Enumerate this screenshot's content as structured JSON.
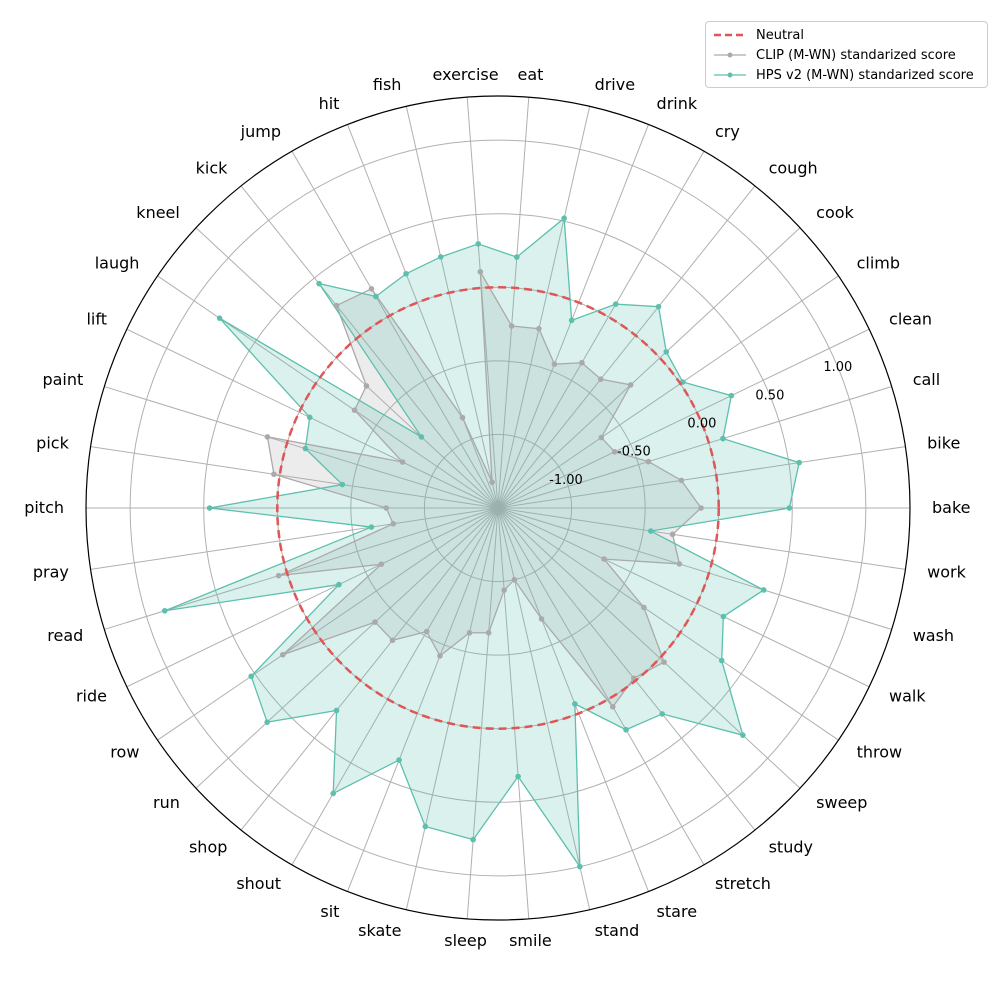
{
  "chart_data": {
    "type": "radar",
    "categories": [
      "bake",
      "bike",
      "call",
      "clean",
      "climb",
      "cook",
      "cough",
      "cry",
      "drink",
      "drive",
      "eat",
      "exercise",
      "fish",
      "hit",
      "jump",
      "kick",
      "kneel",
      "laugh",
      "lift",
      "paint",
      "pick",
      "pitch",
      "pray",
      "read",
      "ride",
      "row",
      "run",
      "shop",
      "shout",
      "sit",
      "skate",
      "sleep",
      "smile",
      "stand",
      "stare",
      "stretch",
      "study",
      "sweep",
      "throw",
      "walk",
      "wash",
      "work"
    ],
    "rlim": [
      -1.5,
      1.3
    ],
    "rticks": [
      -1.0,
      -0.5,
      0.0,
      0.5,
      1.0
    ],
    "rtick_labels": [
      "-1.00",
      "-0.50",
      "0.00",
      "0.50",
      "1.00"
    ],
    "neutral_value": 0.0,
    "grid": true,
    "legend_position": "top-right",
    "series": [
      {
        "name": "CLIP (M-WN) standarized score",
        "color": "#aaaaaa",
        "values": [
          -0.12,
          -0.24,
          -0.43,
          -0.62,
          -0.65,
          -0.27,
          -0.38,
          -0.36,
          -0.45,
          -0.25,
          -0.26,
          0.11,
          -1.32,
          -0.84,
          0.22,
          0.26,
          -0.28,
          -0.32,
          -0.78,
          0.14,
          0.04,
          -0.74,
          -0.78,
          0.06,
          -0.62,
          0.27,
          -0.36,
          -0.35,
          -0.53,
          -0.42,
          -0.63,
          -0.65,
          -0.94,
          -1.0,
          -0.69,
          0.06,
          -0.02,
          0.04,
          -0.3,
          -0.7,
          -0.21,
          -0.3
        ]
      },
      {
        "name": "HPS v2 (M-WN) standarized score",
        "color": "#5dbfad",
        "values": [
          0.48,
          0.57,
          0.1,
          0.26,
          0.02,
          0.06,
          0.25,
          0.1,
          -0.13,
          0.52,
          0.21,
          0.3,
          0.25,
          0.21,
          0.16,
          0.45,
          -0.79,
          0.79,
          -0.08,
          -0.13,
          -0.43,
          0.46,
          -0.63,
          0.87,
          -0.3,
          0.53,
          0.64,
          0.26,
          0.74,
          0.34,
          0.72,
          0.76,
          0.33,
          1.0,
          -0.07,
          0.24,
          0.29,
          0.77,
          0.34,
          0.2,
          0.39,
          -0.45
        ]
      }
    ],
    "legend": {
      "neutral_label": "Neutral",
      "neutral_color": "#e05555"
    }
  }
}
